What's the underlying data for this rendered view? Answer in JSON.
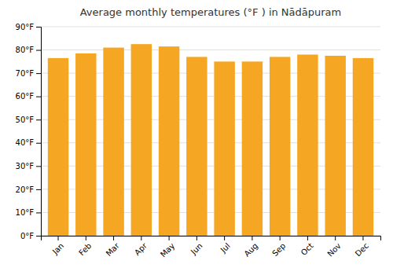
{
  "chart_data": {
    "type": "bar",
    "title": "Average monthly temperatures (°F ) in Nādāpuram",
    "categories": [
      "Jan",
      "Feb",
      "Mar",
      "Apr",
      "May",
      "Jun",
      "Jul",
      "Aug",
      "Sep",
      "Oct",
      "Nov",
      "Dec"
    ],
    "values": [
      76.5,
      78.5,
      81.0,
      82.5,
      81.5,
      77.0,
      75.0,
      75.0,
      77.0,
      78.0,
      77.5,
      76.5
    ],
    "color": "#F5A623",
    "ylim": [
      0,
      90
    ],
    "yticks": [
      {
        "value": 0,
        "label": "0°F"
      },
      {
        "value": 10,
        "label": "10°F"
      },
      {
        "value": 20,
        "label": "20°F"
      },
      {
        "value": 30,
        "label": "30°F"
      },
      {
        "value": 40,
        "label": "40°F"
      },
      {
        "value": 50,
        "label": "50°F"
      },
      {
        "value": 60,
        "label": "60°F"
      },
      {
        "value": 70,
        "label": "70°F"
      },
      {
        "value": 80,
        "label": "80°F"
      },
      {
        "value": 90,
        "label": "90°F"
      }
    ],
    "grid": true
  }
}
